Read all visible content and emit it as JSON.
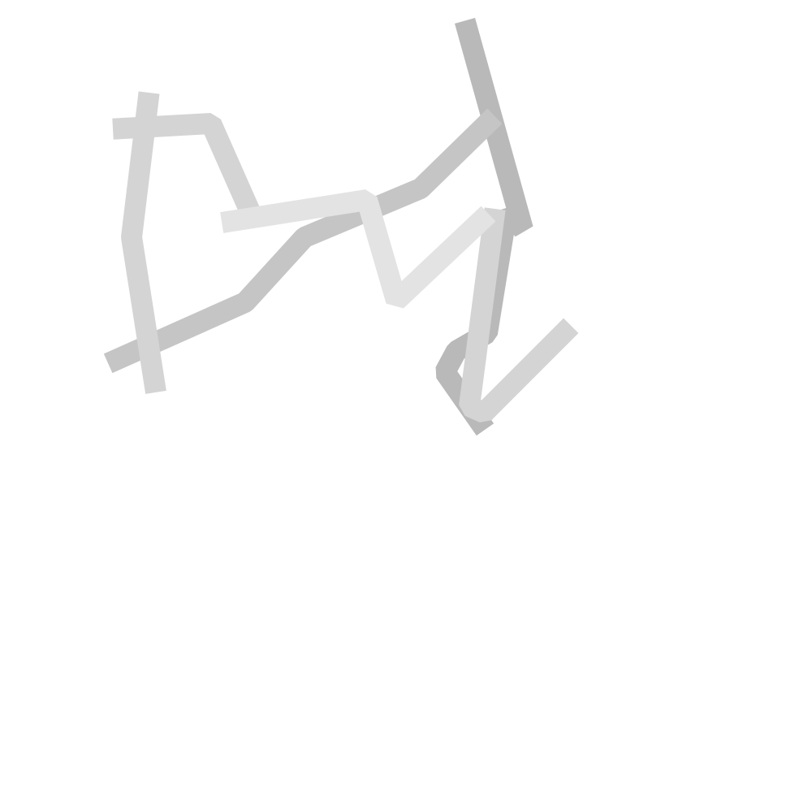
{
  "scene": {
    "background": "#ffffff",
    "polylines": [
      {
        "name": "dark-gray-stroke",
        "color": "#b9b9b9"
      },
      {
        "name": "mid-gray-stroke",
        "color": "#c5c5c5"
      },
      {
        "name": "light-gray-stroke",
        "color": "#d4d4d4"
      },
      {
        "name": "lighter-gray-stroke",
        "color": "#e3e3e3"
      }
    ]
  }
}
